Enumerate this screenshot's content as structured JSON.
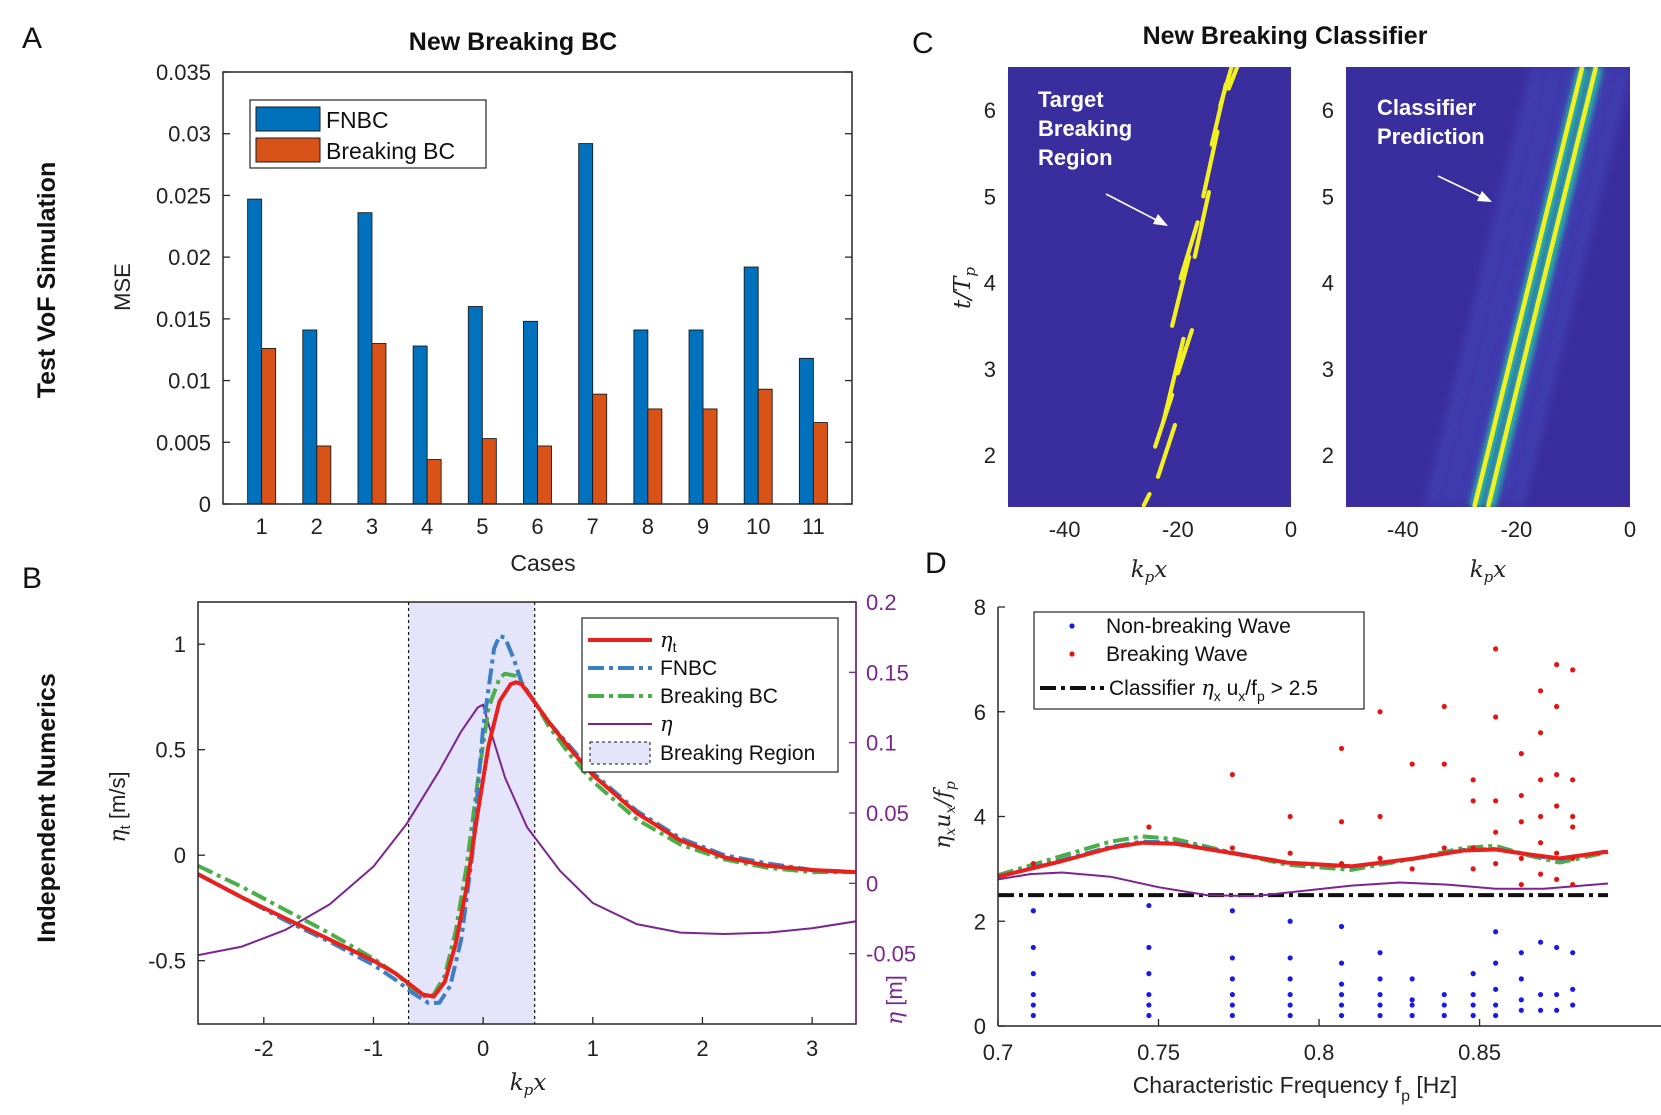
{
  "panels": {
    "A": {
      "letter": "A",
      "row_label": "Test VoF Simulation",
      "chart_data": {
        "type": "bar",
        "title": "New Breaking BC",
        "xlabel": "Cases",
        "ylabel": "MSE",
        "categories": [
          "1",
          "2",
          "3",
          "4",
          "5",
          "6",
          "7",
          "8",
          "9",
          "10",
          "11"
        ],
        "ylim": [
          0,
          0.035
        ],
        "yticks": [
          0,
          0.005,
          0.01,
          0.015,
          0.02,
          0.025,
          0.03,
          0.035
        ],
        "ytick_labels": [
          "0",
          "0.005",
          "0.01",
          "0.015",
          "0.02",
          "0.025",
          "0.03",
          "0.035"
        ],
        "legend_position": "top-left",
        "series": [
          {
            "name": "FNBC",
            "color": "#0072BD",
            "values": [
              0.0247,
              0.0141,
              0.0236,
              0.0128,
              0.016,
              0.0148,
              0.0292,
              0.0141,
              0.0141,
              0.0192,
              0.0118
            ]
          },
          {
            "name": "Breaking BC",
            "color": "#D95319",
            "values": [
              0.0126,
              0.0047,
              0.013,
              0.0036,
              0.0053,
              0.0047,
              0.0089,
              0.0077,
              0.0077,
              0.0093,
              0.0066
            ]
          }
        ]
      }
    },
    "B": {
      "letter": "B",
      "row_label": "Independent Numerics",
      "chart_data": {
        "type": "line",
        "xlabel": "k_p x",
        "ylabel_left": "η_t [m/s]",
        "ylabel_right": "η [m]",
        "xlim": [
          -2.6,
          3.4
        ],
        "ylim_left": [
          -0.8,
          1.2
        ],
        "ylim_right": [
          -0.1,
          0.2
        ],
        "xticks": [
          -2,
          -1,
          0,
          1,
          2,
          3
        ],
        "yticks_left": [
          -0.5,
          0,
          0.5,
          1
        ],
        "yticks_right": [
          -0.05,
          0,
          0.05,
          0.1,
          0.15,
          0.2
        ],
        "ytick_labels_right": [
          "-0.05",
          "0",
          "0.05",
          "0.1",
          "0.15",
          "0.2"
        ],
        "breaking_region": [
          -0.68,
          0.47
        ],
        "legend_position": "top-right",
        "legend": [
          "η_t",
          "FNBC",
          "Breaking BC",
          "η",
          "Breaking Region"
        ],
        "series": [
          {
            "name": "η_t",
            "color": "#E8211D",
            "axis": "left",
            "x": [
              -2.6,
              -2.2,
              -1.8,
              -1.4,
              -1.0,
              -0.8,
              -0.65,
              -0.55,
              -0.45,
              -0.35,
              -0.25,
              -0.15,
              -0.05,
              0.05,
              0.15,
              0.25,
              0.3,
              0.35,
              0.45,
              0.6,
              0.8,
              1.0,
              1.4,
              1.8,
              2.2,
              2.6,
              3.0,
              3.4
            ],
            "y": [
              -0.09,
              -0.2,
              -0.3,
              -0.4,
              -0.5,
              -0.56,
              -0.62,
              -0.66,
              -0.67,
              -0.6,
              -0.42,
              -0.15,
              0.2,
              0.52,
              0.73,
              0.81,
              0.82,
              0.81,
              0.74,
              0.63,
              0.5,
              0.38,
              0.2,
              0.07,
              -0.01,
              -0.05,
              -0.07,
              -0.08
            ]
          },
          {
            "name": "FNBC",
            "color": "#3C7FC4",
            "axis": "left",
            "x": [
              -2.6,
              -2.2,
              -1.8,
              -1.4,
              -1.0,
              -0.8,
              -0.65,
              -0.5,
              -0.4,
              -0.3,
              -0.2,
              -0.1,
              0.0,
              0.1,
              0.15,
              0.2,
              0.28,
              0.35,
              0.45,
              0.6,
              0.8,
              1.0,
              1.4,
              1.8,
              2.2,
              2.6,
              3.0,
              3.4
            ],
            "y": [
              -0.09,
              -0.2,
              -0.31,
              -0.41,
              -0.52,
              -0.59,
              -0.65,
              -0.7,
              -0.7,
              -0.62,
              -0.4,
              0.0,
              0.6,
              0.98,
              1.04,
              1.03,
              0.93,
              0.82,
              0.74,
              0.63,
              0.51,
              0.39,
              0.21,
              0.08,
              0.0,
              -0.04,
              -0.07,
              -0.08
            ]
          },
          {
            "name": "Breaking BC",
            "color": "#4BAF49",
            "axis": "left",
            "x": [
              -2.6,
              -2.2,
              -1.8,
              -1.4,
              -1.0,
              -0.8,
              -0.65,
              -0.55,
              -0.45,
              -0.35,
              -0.25,
              -0.15,
              -0.05,
              0.05,
              0.15,
              0.2,
              0.3,
              0.4,
              0.5,
              0.6,
              0.8,
              1.0,
              1.4,
              1.8,
              2.2,
              2.6,
              3.0,
              3.4
            ],
            "y": [
              -0.05,
              -0.15,
              -0.26,
              -0.37,
              -0.49,
              -0.56,
              -0.63,
              -0.67,
              -0.66,
              -0.57,
              -0.36,
              -0.05,
              0.35,
              0.7,
              0.84,
              0.86,
              0.85,
              0.78,
              0.7,
              0.61,
              0.47,
              0.35,
              0.17,
              0.05,
              -0.02,
              -0.06,
              -0.08,
              -0.08
            ]
          },
          {
            "name": "η",
            "color": "#7B2590",
            "axis": "right",
            "x": [
              -2.6,
              -2.2,
              -1.8,
              -1.4,
              -1.0,
              -0.7,
              -0.4,
              -0.2,
              -0.05,
              0.0,
              0.05,
              0.2,
              0.4,
              0.7,
              1.0,
              1.4,
              1.8,
              2.2,
              2.6,
              3.0,
              3.4
            ],
            "y": [
              -0.051,
              -0.045,
              -0.033,
              -0.015,
              0.012,
              0.042,
              0.08,
              0.108,
              0.125,
              0.127,
              0.113,
              0.075,
              0.04,
              0.009,
              -0.014,
              -0.029,
              -0.035,
              -0.036,
              -0.035,
              -0.032,
              -0.027
            ]
          }
        ]
      }
    },
    "C": {
      "letter": "C",
      "title": "New Breaking Classifier",
      "chart_data": {
        "type": "heatmap",
        "xlabel": "k_p x",
        "ylabel": "t/T_p",
        "xlim": [
          -50,
          0
        ],
        "ylim": [
          1.4,
          6.5
        ],
        "xticks": [
          -40,
          -20,
          0
        ],
        "yticks": [
          2,
          3,
          4,
          5,
          6
        ],
        "colors": {
          "background": "#3A2D9E",
          "target": "#F3F021",
          "prediction_mid": "#2BB4A8"
        },
        "annotations": [
          {
            "panel": "left",
            "text": [
              "Target",
              "Breaking",
              "Region"
            ]
          },
          {
            "panel": "right",
            "text": [
              "Classifier",
              "Prediction"
            ]
          }
        ]
      }
    },
    "D": {
      "letter": "D",
      "chart_data": {
        "type": "scatter",
        "xlabel": "Characteristic Frequency f",
        "xlabel_sub": "p",
        "xlabel_unit": "[Hz]",
        "ylabel": "η_x u_x / f_p",
        "xlim": [
          0.7,
          0.89
        ],
        "ylim": [
          0,
          8
        ],
        "xticks": [
          0.7,
          0.75,
          0.8,
          0.85
        ],
        "xtick_labels": [
          "0.7",
          "0.75",
          "0.8",
          "0.85"
        ],
        "yticks": [
          0,
          2,
          4,
          6,
          8
        ],
        "legend_position": "top-left",
        "legend": {
          "non_breaking": "Non-breaking Wave",
          "breaking": "Breaking Wave",
          "classifier_prefix": "Classifier ",
          "classifier_sym1": "η",
          "classifier_sub1": "x",
          "classifier_mid": " u",
          "classifier_sub2": "x",
          "classifier_mid2": "/f",
          "classifier_sub3": "p",
          "classifier_suffix": " > 2.5"
        },
        "threshold": 2.5,
        "non_breaking": {
          "color": "#1A1AE6",
          "x": [
            0.711,
            0.711,
            0.711,
            0.711,
            0.711,
            0.711,
            0.747,
            0.747,
            0.747,
            0.747,
            0.747,
            0.747,
            0.773,
            0.773,
            0.773,
            0.773,
            0.773,
            0.773,
            0.791,
            0.791,
            0.791,
            0.791,
            0.791,
            0.791,
            0.807,
            0.807,
            0.807,
            0.807,
            0.807,
            0.807,
            0.819,
            0.819,
            0.819,
            0.819,
            0.819,
            0.829,
            0.829,
            0.829,
            0.829,
            0.839,
            0.839,
            0.839,
            0.848,
            0.848,
            0.848,
            0.848,
            0.855,
            0.855,
            0.855,
            0.855,
            0.855,
            0.863,
            0.863,
            0.863,
            0.863,
            0.869,
            0.869,
            0.869,
            0.874,
            0.874,
            0.874,
            0.879,
            0.879,
            0.879
          ],
          "y": [
            0.2,
            0.4,
            0.6,
            1.0,
            1.5,
            2.2,
            0.2,
            0.4,
            0.6,
            1.0,
            1.5,
            2.3,
            0.2,
            0.4,
            0.6,
            0.9,
            1.3,
            2.2,
            0.2,
            0.4,
            0.6,
            0.9,
            1.3,
            2.0,
            0.2,
            0.4,
            0.6,
            0.8,
            1.2,
            1.9,
            0.2,
            0.4,
            0.6,
            0.9,
            1.4,
            0.2,
            0.4,
            0.5,
            0.9,
            0.2,
            0.4,
            0.6,
            0.2,
            0.4,
            0.6,
            1.0,
            0.2,
            0.4,
            0.7,
            1.2,
            1.8,
            0.3,
            0.5,
            0.9,
            1.4,
            0.3,
            0.6,
            1.6,
            0.3,
            0.6,
            1.5,
            0.4,
            0.7,
            1.4
          ]
        },
        "breaking": {
          "color": "#E51414",
          "x": [
            0.711,
            0.747,
            0.773,
            0.773,
            0.791,
            0.791,
            0.807,
            0.807,
            0.807,
            0.819,
            0.819,
            0.819,
            0.829,
            0.829,
            0.839,
            0.839,
            0.839,
            0.848,
            0.848,
            0.848,
            0.848,
            0.855,
            0.855,
            0.855,
            0.855,
            0.855,
            0.863,
            0.863,
            0.863,
            0.863,
            0.863,
            0.869,
            0.869,
            0.869,
            0.869,
            0.869,
            0.869,
            0.874,
            0.874,
            0.874,
            0.874,
            0.874,
            0.874,
            0.879,
            0.879,
            0.879,
            0.879,
            0.879,
            0.879
          ],
          "y": [
            3.1,
            3.8,
            4.8,
            3.4,
            4.0,
            3.3,
            5.3,
            3.9,
            3.1,
            6.0,
            4.0,
            3.2,
            5.0,
            3.0,
            6.1,
            5.0,
            3.4,
            4.7,
            4.3,
            3.4,
            3.0,
            7.2,
            5.9,
            4.3,
            3.7,
            3.1,
            5.2,
            4.4,
            3.9,
            3.2,
            2.7,
            6.4,
            5.6,
            4.7,
            4.0,
            3.5,
            2.9,
            6.9,
            6.1,
            4.8,
            4.2,
            3.3,
            2.8,
            6.8,
            4.7,
            4.0,
            3.8,
            3.2,
            2.7
          ]
        },
        "lines": [
          {
            "name": "η_t",
            "color": "#E8211D",
            "x": [
              0.7,
              0.72,
              0.735,
              0.745,
              0.755,
              0.77,
              0.79,
              0.81,
              0.83,
              0.845,
              0.855,
              0.865,
              0.875,
              0.89
            ],
            "y": [
              2.85,
              3.15,
              3.4,
              3.5,
              3.48,
              3.33,
              3.12,
              3.05,
              3.2,
              3.35,
              3.37,
              3.28,
              3.2,
              3.33
            ]
          },
          {
            "name": "FNBC",
            "color": "#3C7FC4",
            "x": [
              0.7,
              0.72,
              0.735,
              0.745,
              0.755,
              0.77,
              0.79,
              0.81,
              0.83,
              0.845,
              0.855,
              0.865,
              0.875,
              0.89
            ],
            "y": [
              2.85,
              3.17,
              3.42,
              3.52,
              3.5,
              3.34,
              3.12,
              3.04,
              3.2,
              3.36,
              3.38,
              3.27,
              3.18,
              3.34
            ]
          },
          {
            "name": "Breaking BC",
            "color": "#4BAF49",
            "x": [
              0.7,
              0.72,
              0.735,
              0.745,
              0.755,
              0.77,
              0.79,
              0.81,
              0.83,
              0.845,
              0.855,
              0.865,
              0.875,
              0.89
            ],
            "y": [
              2.88,
              3.25,
              3.52,
              3.62,
              3.57,
              3.35,
              3.08,
              2.98,
              3.2,
              3.4,
              3.44,
              3.26,
              3.12,
              3.32
            ]
          },
          {
            "name": "η",
            "color": "#7B2590",
            "x": [
              0.7,
              0.71,
              0.72,
              0.735,
              0.75,
              0.765,
              0.78,
              0.795,
              0.81,
              0.825,
              0.84,
              0.855,
              0.87,
              0.89
            ],
            "y": [
              2.8,
              2.9,
              2.93,
              2.85,
              2.65,
              2.5,
              2.48,
              2.58,
              2.68,
              2.74,
              2.7,
              2.62,
              2.62,
              2.72
            ]
          }
        ]
      }
    }
  }
}
